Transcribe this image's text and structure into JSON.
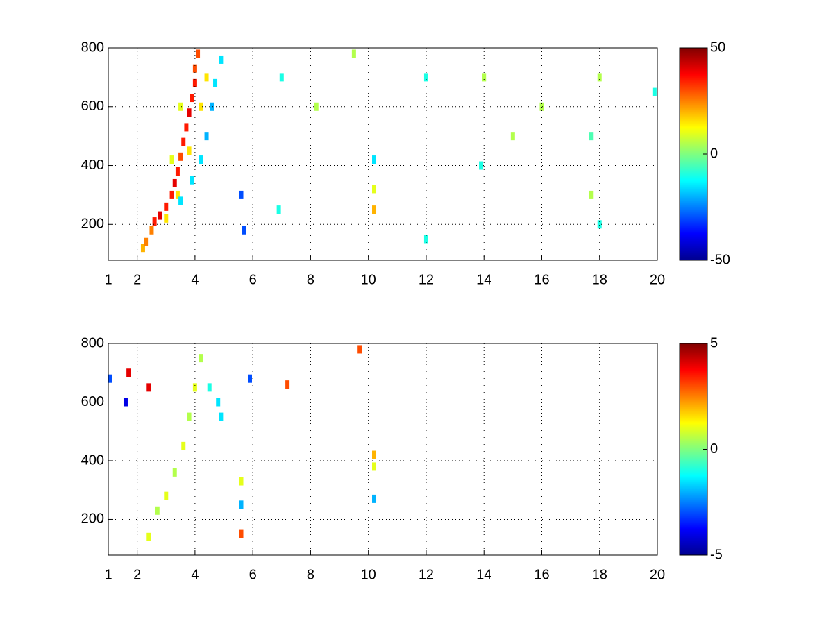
{
  "chart_data": [
    {
      "type": "heatmap",
      "x": [
        2.2,
        2.3,
        2.5,
        2.6,
        2.8,
        3.0,
        3.2,
        3.3,
        3.4,
        3.5,
        3.6,
        3.7,
        3.8,
        3.9,
        4.0,
        4.0,
        4.1,
        3.0,
        3.4,
        3.8,
        4.2,
        4.4,
        3.2,
        3.5,
        3.5,
        3.9,
        4.2,
        4.4,
        4.6,
        4.7,
        4.9,
        5.6,
        5.7,
        10.2,
        10.2,
        10.2,
        12,
        12,
        13.9,
        14,
        16,
        17.7,
        17.7,
        18,
        18,
        19.9,
        7,
        8.2,
        9.5,
        15,
        6.9
      ],
      "y": [
        120,
        140,
        180,
        210,
        230,
        260,
        300,
        340,
        380,
        430,
        480,
        530,
        580,
        630,
        680,
        730,
        780,
        220,
        300,
        450,
        600,
        700,
        420,
        600,
        280,
        350,
        420,
        500,
        600,
        680,
        760,
        300,
        180,
        420,
        320,
        250,
        700,
        150,
        400,
        700,
        600,
        300,
        500,
        700,
        200,
        650,
        700,
        600,
        780,
        500,
        250
      ],
      "values": [
        20,
        25,
        25,
        35,
        40,
        35,
        35,
        40,
        35,
        30,
        35,
        35,
        40,
        35,
        35,
        30,
        30,
        15,
        15,
        15,
        15,
        15,
        10,
        10,
        -15,
        -15,
        -15,
        -20,
        -20,
        -15,
        -15,
        -30,
        -30,
        -15,
        10,
        20,
        -10,
        -10,
        -10,
        5,
        5,
        5,
        -5,
        5,
        -10,
        -10,
        -10,
        5,
        5,
        5,
        -10
      ],
      "xlim": [
        1,
        20
      ],
      "ylim": [
        78,
        800
      ],
      "xticks": [
        1,
        2,
        4,
        6,
        8,
        10,
        12,
        14,
        16,
        18,
        20
      ],
      "yticks": [
        200,
        400,
        600,
        800
      ],
      "clim": [
        -50,
        50
      ],
      "cticks": [
        -50,
        0,
        50
      ],
      "grid": true
    },
    {
      "type": "heatmap",
      "x": [
        2.4,
        2.7,
        3.0,
        3.3,
        3.6,
        3.8,
        4.0,
        4.2,
        4.5,
        4.8,
        4.9,
        1.7,
        1.6,
        2.4,
        5.6,
        5.6,
        5.6,
        7.2,
        9.7,
        10.2,
        10.2,
        10.2,
        1,
        5.9
      ],
      "y": [
        140,
        230,
        280,
        360,
        450,
        550,
        650,
        750,
        650,
        600,
        550,
        700,
        600,
        650,
        150,
        250,
        330,
        660,
        780,
        420,
        380,
        270,
        680,
        680
      ],
      "values": [
        1,
        0.5,
        1,
        0.5,
        1,
        0.5,
        1,
        0.5,
        -1,
        -1.5,
        -1.5,
        4,
        -4,
        4,
        3,
        -2,
        1,
        3,
        3,
        2,
        1,
        -2,
        -3,
        -3
      ],
      "xlim": [
        1,
        20
      ],
      "ylim": [
        78,
        800
      ],
      "xticks": [
        1,
        2,
        4,
        6,
        8,
        10,
        12,
        14,
        16,
        18,
        20
      ],
      "yticks": [
        200,
        400,
        600,
        800
      ],
      "clim": [
        -5,
        5
      ],
      "cticks": [
        -5,
        0,
        5
      ],
      "grid": true
    }
  ]
}
